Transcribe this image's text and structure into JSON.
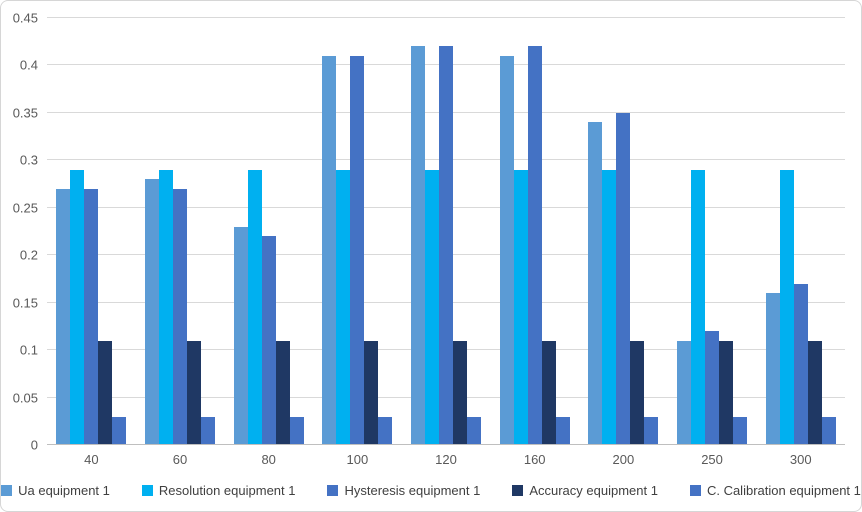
{
  "chart_data": {
    "type": "bar",
    "categories": [
      "40",
      "60",
      "80",
      "100",
      "120",
      "160",
      "200",
      "250",
      "300"
    ],
    "series": [
      {
        "name": "Ua equipment 1",
        "color": "#5B9BD5",
        "values": [
          0.27,
          0.28,
          0.23,
          0.41,
          0.42,
          0.41,
          0.34,
          0.11,
          0.16
        ]
      },
      {
        "name": "Resolution equipment 1",
        "color": "#00B0F0",
        "values": [
          0.29,
          0.29,
          0.29,
          0.29,
          0.29,
          0.29,
          0.29,
          0.29,
          0.29
        ]
      },
      {
        "name": "Hysteresis equipment 1",
        "color": "#4472C4",
        "values": [
          0.27,
          0.27,
          0.22,
          0.41,
          0.42,
          0.42,
          0.35,
          0.12,
          0.17
        ]
      },
      {
        "name": "Accuracy equipment 1",
        "color": "#1F3864",
        "values": [
          0.11,
          0.11,
          0.11,
          0.11,
          0.11,
          0.11,
          0.11,
          0.11,
          0.11
        ]
      },
      {
        "name": "C. Calibration equipment 1",
        "color": "#4472C4",
        "values": [
          0.03,
          0.03,
          0.03,
          0.03,
          0.03,
          0.03,
          0.03,
          0.03,
          0.03
        ]
      }
    ],
    "title": "",
    "xlabel": "",
    "ylabel": "",
    "ylim": [
      0,
      0.45
    ],
    "ytick_step": 0.05,
    "ytick_labels": [
      "0",
      "0.05",
      "0.1",
      "0.15",
      "0.2",
      "0.25",
      "0.3",
      "0.35",
      "0.4",
      "0.45"
    ],
    "grid": true,
    "legend_position": "bottom",
    "gridline_color": "#D9D9D9",
    "axis_label_color": "#595959",
    "legend_text_color": "#404040"
  }
}
